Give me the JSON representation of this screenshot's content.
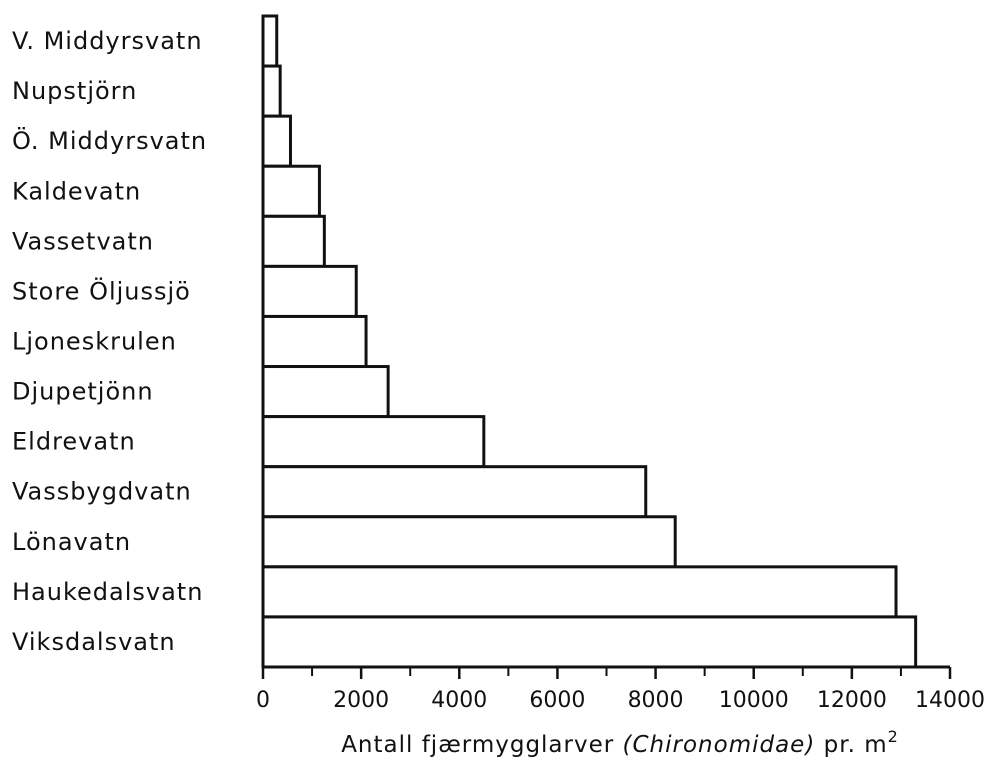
{
  "chart_data": {
    "type": "bar",
    "orientation": "horizontal",
    "categories": [
      "V. Middyrsvatn",
      "Nupstjörn",
      "Ö. Middyrsvatn",
      "Kaldevatn",
      "Vassetvatn",
      "Store Öljussjö",
      "Ljoneskrulen",
      "Djupetjönn",
      "Eldrevatn",
      "Vassbygdvatn",
      "Lönavatn",
      "Haukedalsvatn",
      "Viksdalsvatn"
    ],
    "values": [
      280,
      350,
      560,
      1150,
      1250,
      1900,
      2100,
      2550,
      4500,
      7800,
      8400,
      12900,
      13300
    ],
    "title": "",
    "xlabel_parts": [
      "Antall fjærmygglarver ",
      "(Chironomidae)",
      " pr. m",
      "2"
    ],
    "xlim": [
      0,
      14000
    ],
    "xticks": [
      "0",
      "2000",
      "4000",
      "6000",
      "8000",
      "10000",
      "12000",
      "14000"
    ],
    "grid": false,
    "legend": "none",
    "bar_fill": "#ffffff",
    "stroke_color": "#111111"
  }
}
